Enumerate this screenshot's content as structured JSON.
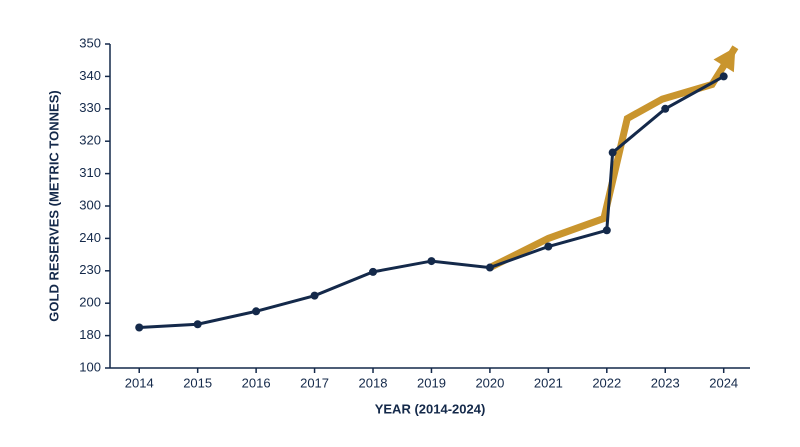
{
  "chart_data": {
    "type": "line",
    "xlabel": "YEAR (2014-2024)",
    "ylabel": "GOLD RESERVES (METRIC TONNES)",
    "xlim": [
      2013.5,
      2024.45
    ],
    "xticks": [
      2014,
      2015,
      2016,
      2017,
      2018,
      2019,
      2020,
      2021,
      2022,
      2023,
      2024
    ],
    "yticks": [
      100,
      180,
      200,
      230,
      240,
      300,
      310,
      320,
      330,
      340,
      350
    ],
    "ylim": [
      100,
      350
    ],
    "series": [
      {
        "color": "#c9952e",
        "arrow": true,
        "x": [
          2020,
          2021,
          2021.95,
          2022.35,
          2022.95,
          2023.8,
          2024.2
        ],
        "values": [
          231,
          240,
          277,
          327,
          333,
          337.5,
          349
        ]
      },
      {
        "color": "#14294a",
        "markers": true,
        "x": [
          2014,
          2015,
          2016,
          2017,
          2018,
          2019,
          2020,
          2021,
          2022,
          2022.1,
          2023,
          2024
        ],
        "values": [
          185,
          187,
          195,
          207,
          229,
          233,
          231,
          237.5,
          255,
          316.5,
          330,
          340
        ]
      }
    ]
  }
}
